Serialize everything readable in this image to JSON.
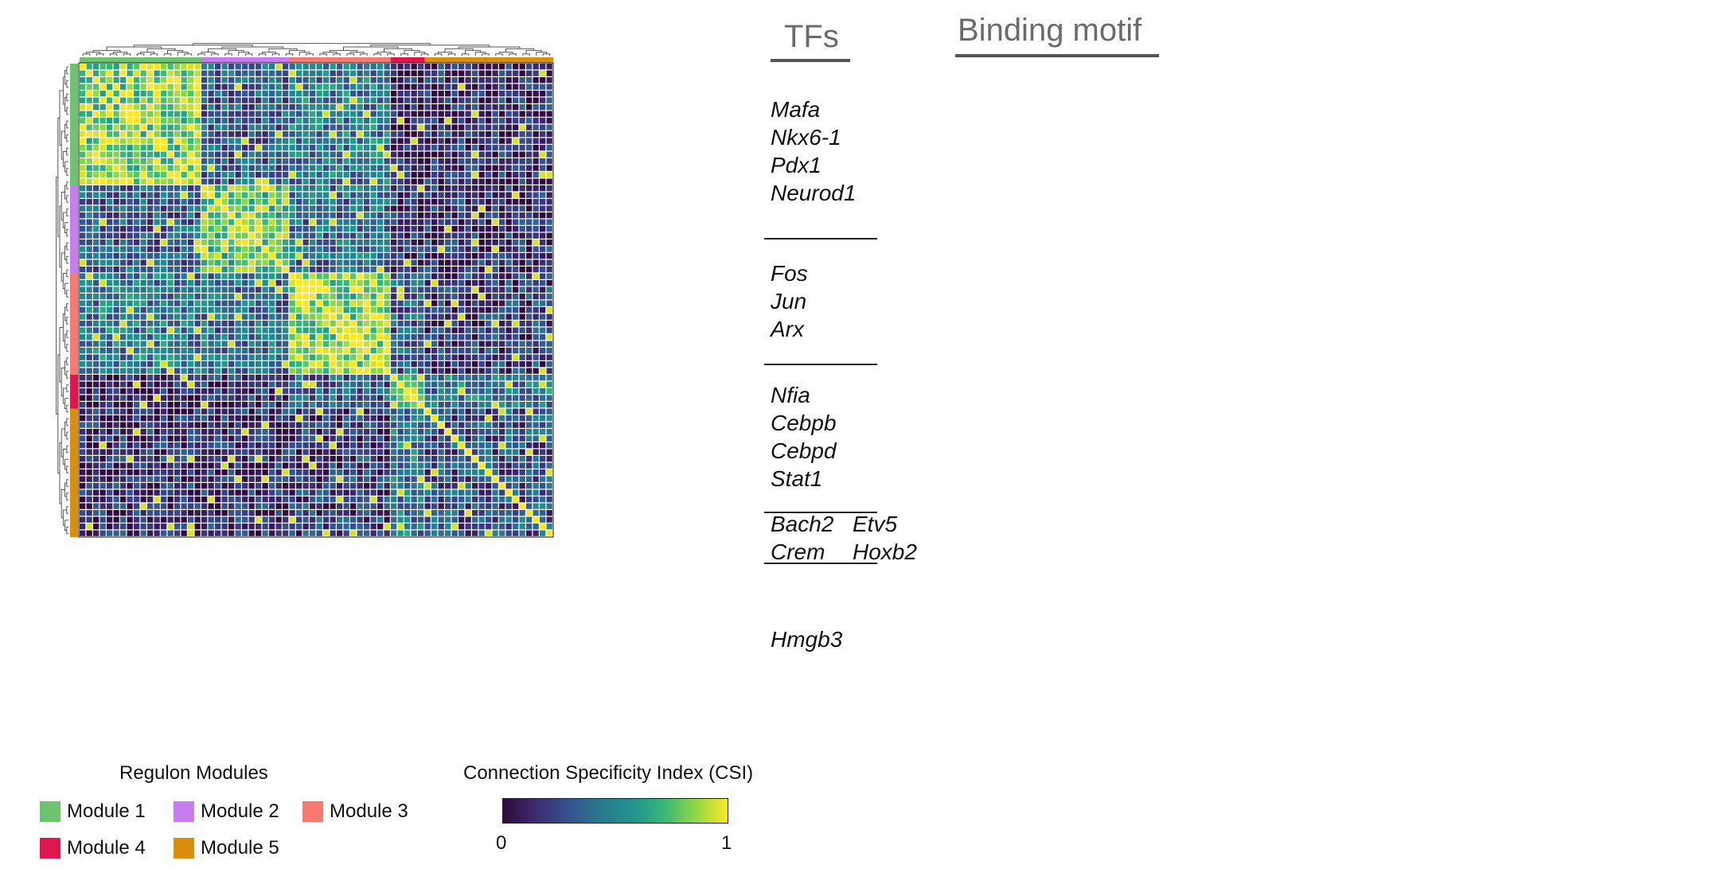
{
  "chart_data": {
    "type": "heatmap",
    "title": "",
    "n_regulons": 70,
    "value_range": [
      0,
      1
    ],
    "colorbar": {
      "title": "Connection Specificity Index (CSI)",
      "min_label": "0",
      "max_label": "1",
      "colors": [
        "#300a3c",
        "#3b2c6e",
        "#35508c",
        "#2a788e",
        "#21918c",
        "#35b779",
        "#8fd744",
        "#fde725"
      ]
    },
    "modules": [
      {
        "name": "Module 1",
        "color": "#6ec46e",
        "count": 18,
        "tfs": [
          "Mafa",
          "Nkx6-1",
          "Pdx1",
          "Neurod1"
        ]
      },
      {
        "name": "Module 2",
        "color": "#c77cf0",
        "count": 13,
        "tfs": [
          "Fos",
          "Jun",
          "Arx"
        ]
      },
      {
        "name": "Module 3",
        "color": "#f57a72",
        "count": 15,
        "tfs": [
          "Nfia",
          "Cebpb",
          "Cebpd",
          "Stat1"
        ]
      },
      {
        "name": "Module 4",
        "color": "#e0174f",
        "count": 5,
        "tfs": [
          "Bach2",
          "Etv5",
          "Crem",
          "Hoxb2"
        ]
      },
      {
        "name": "Module 5",
        "color": "#d98f0b",
        "count": 19,
        "tfs": [
          "Hmgb3"
        ]
      }
    ],
    "block_strength": [
      [
        0.85,
        0.35,
        0.45,
        0.1,
        0.15
      ],
      [
        0.35,
        0.8,
        0.4,
        0.15,
        0.15
      ],
      [
        0.45,
        0.4,
        0.85,
        0.35,
        0.2
      ],
      [
        0.1,
        0.15,
        0.35,
        0.85,
        0.45
      ],
      [
        0.15,
        0.15,
        0.2,
        0.45,
        0.3
      ]
    ]
  },
  "headers": {
    "tfs": "TFs",
    "binding_motif": "Binding motif"
  },
  "legend": {
    "title": "Regulon Modules"
  }
}
